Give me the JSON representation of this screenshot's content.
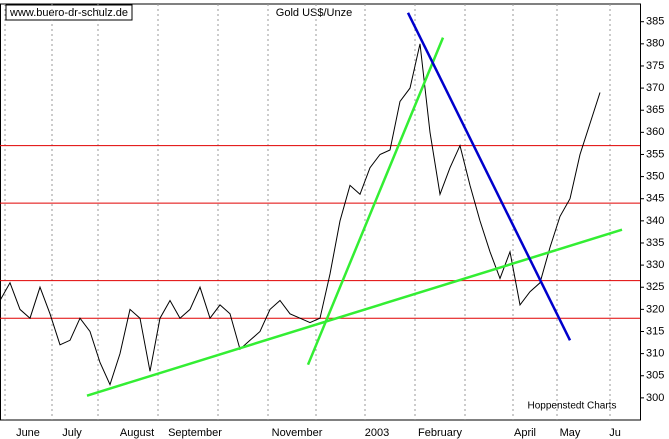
{
  "chart_data": {
    "type": "line",
    "title": "Gold US$/Unze",
    "source": "www.buero-dr-schulz.de",
    "credit": "Hoppenstedt Charts",
    "xlim": [
      0,
      64
    ],
    "xticks": [
      {
        "value": 2.8,
        "label": "June"
      },
      {
        "value": 7.2,
        "label": "July"
      },
      {
        "value": 13.7,
        "label": "August"
      },
      {
        "value": 19.5,
        "label": "September"
      },
      {
        "value": 29.7,
        "label": "November"
      },
      {
        "value": 37.7,
        "label": "2003"
      },
      {
        "value": 44,
        "label": "February"
      },
      {
        "value": 52.5,
        "label": "April"
      },
      {
        "value": 57,
        "label": "May"
      },
      {
        "value": 61.5,
        "label": "Ju"
      }
    ],
    "xgrid": [
      0.5,
      5.2,
      9.8,
      15.8,
      21.8,
      26.8,
      31.6,
      36.5,
      41.5,
      46.5,
      51.3,
      55.7,
      61
    ],
    "ylim": [
      295,
      389
    ],
    "yticks": [
      300,
      305,
      310,
      315,
      320,
      325,
      330,
      335,
      340,
      345,
      350,
      355,
      360,
      365,
      370,
      375,
      380,
      385
    ],
    "series": [
      {
        "color": "#000000",
        "values": [
          322,
          326,
          320,
          318,
          325,
          319,
          312,
          313,
          318,
          315,
          308,
          303,
          310,
          320,
          318,
          306,
          318,
          322,
          318,
          320,
          325,
          318,
          321,
          319,
          311,
          313,
          315,
          320,
          322,
          319,
          318,
          317,
          318,
          328,
          340,
          348,
          346,
          352,
          355,
          356,
          367,
          370,
          380,
          360,
          346,
          352,
          357,
          348,
          340,
          333,
          327,
          333,
          321,
          324,
          326,
          334,
          341,
          345,
          355,
          362,
          369
        ]
      }
    ],
    "hlines": {
      "color": "#e00000",
      "values": [
        357,
        344,
        326.5,
        318
      ]
    },
    "trendlines": [
      {
        "color": "#33ee33",
        "x": [
          8.7,
          62.2
        ],
        "y": [
          300.5,
          338
        ]
      },
      {
        "color": "#33ee33",
        "x": [
          30.8,
          44.3
        ],
        "y": [
          307.5,
          381.4
        ]
      },
      {
        "color": "#0000cc",
        "x": [
          40.8,
          57
        ],
        "y": [
          387,
          313
        ]
      }
    ]
  }
}
